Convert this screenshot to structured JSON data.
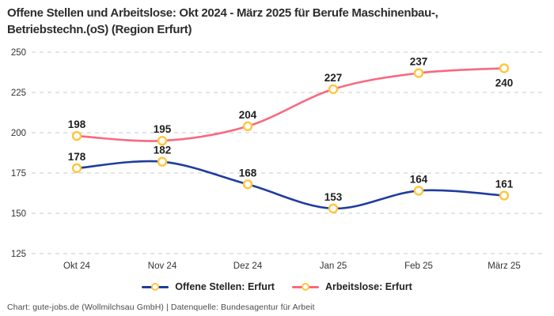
{
  "title": {
    "lines": [
      "Offene Stellen und Arbeitslose: Okt 2024 - März 2025 für Berufe Maschinenbau-,",
      "Betriebstechn.(oS) (Region Erfurt)"
    ]
  },
  "chart_data": {
    "type": "line",
    "categories": [
      "Okt 24",
      "Nov 24",
      "Dez 24",
      "Jan 25",
      "Feb 25",
      "März 25"
    ],
    "series": [
      {
        "name": "Offene Stellen: Erfurt",
        "values": [
          178,
          182,
          168,
          153,
          164,
          161
        ],
        "color": "#1F3D9C",
        "label_positions": [
          "above",
          "above",
          "above",
          "above",
          "above",
          "above"
        ]
      },
      {
        "name": "Arbeitslose: Erfurt",
        "values": [
          198,
          195,
          204,
          227,
          237,
          240
        ],
        "color": "#F9687F",
        "label_positions": [
          "above",
          "above",
          "above",
          "above",
          "above",
          "below"
        ]
      }
    ],
    "yticks": [
      125,
      150,
      175,
      200,
      225,
      250
    ],
    "ylim": [
      125,
      250
    ],
    "grid": "horizontal-dashed",
    "grid_color": "#c9c9c9",
    "marker": {
      "fill": "#ffffff",
      "stroke": "#FFC53D"
    },
    "legend_position": "bottom",
    "smooth": true
  },
  "footer": {
    "text": "Chart: gute-jobs.de (Wollmilchsau GmbH) | Datenquelle: Bundesagentur für Arbeit"
  }
}
